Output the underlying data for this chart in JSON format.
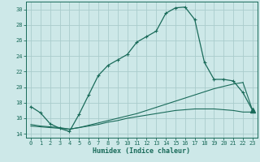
{
  "xlabel": "Humidex (Indice chaleur)",
  "bg_color": "#cde8e8",
  "grid_color": "#aacccc",
  "line_color": "#1a6b5a",
  "xlim": [
    -0.5,
    23.5
  ],
  "ylim": [
    13.5,
    31.0
  ],
  "yticks": [
    14,
    16,
    18,
    20,
    22,
    24,
    26,
    28,
    30
  ],
  "xticks": [
    0,
    1,
    2,
    3,
    4,
    5,
    6,
    7,
    8,
    9,
    10,
    11,
    12,
    13,
    14,
    15,
    16,
    17,
    18,
    19,
    20,
    21,
    22,
    23
  ],
  "curve1_x": [
    0,
    1,
    2,
    3,
    4,
    5,
    6,
    7,
    8,
    9,
    10,
    11,
    12,
    13,
    14,
    15,
    16,
    17,
    18,
    19,
    20,
    21,
    22,
    23
  ],
  "curve1_y": [
    17.5,
    16.7,
    15.3,
    14.7,
    14.3,
    16.5,
    19.0,
    21.5,
    22.8,
    23.5,
    24.2,
    25.8,
    26.5,
    27.2,
    29.5,
    30.2,
    30.3,
    28.7,
    23.2,
    21.0,
    21.0,
    20.8,
    19.3,
    17.0
  ],
  "curve2_x": [
    0,
    1,
    2,
    3,
    4,
    5,
    6,
    7,
    8,
    9,
    10,
    11,
    12,
    13,
    14,
    15,
    16,
    17,
    18,
    19,
    20,
    21,
    22,
    23
  ],
  "curve2_y": [
    15.2,
    15.0,
    14.9,
    14.8,
    14.6,
    14.8,
    15.1,
    15.4,
    15.7,
    16.0,
    16.3,
    16.6,
    17.0,
    17.4,
    17.8,
    18.2,
    18.6,
    19.0,
    19.4,
    19.8,
    20.1,
    20.4,
    20.6,
    17.0
  ],
  "curve3_x": [
    0,
    1,
    2,
    3,
    4,
    5,
    6,
    7,
    8,
    9,
    10,
    11,
    12,
    13,
    14,
    15,
    16,
    17,
    18,
    19,
    20,
    21,
    22,
    23
  ],
  "curve3_y": [
    15.0,
    14.9,
    14.8,
    14.7,
    14.6,
    14.8,
    15.0,
    15.2,
    15.5,
    15.7,
    16.0,
    16.2,
    16.4,
    16.6,
    16.8,
    17.0,
    17.1,
    17.2,
    17.2,
    17.2,
    17.1,
    17.0,
    16.8,
    16.8
  ]
}
